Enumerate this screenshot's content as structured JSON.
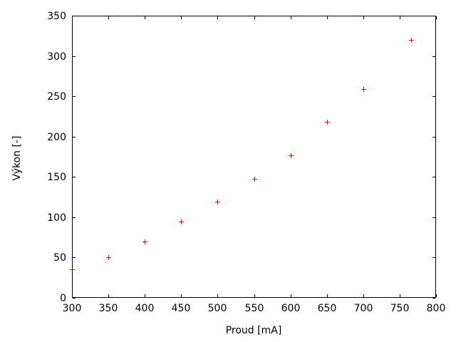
{
  "chart_data": {
    "type": "scatter",
    "title": "",
    "xlabel": "Proud [mA]",
    "ylabel": "Výkon [-]",
    "xlim": [
      300,
      800
    ],
    "ylim": [
      0,
      350
    ],
    "xticks": [
      300,
      350,
      400,
      450,
      500,
      550,
      600,
      650,
      700,
      750,
      800
    ],
    "yticks": [
      0,
      50,
      100,
      150,
      200,
      250,
      300,
      350
    ],
    "grid": false,
    "legend_position": "none",
    "marker": "plus",
    "marker_color": "#ff0000",
    "axis_color": "#000000",
    "background_color": "#ffffff",
    "tick_style": "inward-mirrored",
    "points": [
      {
        "x": 300,
        "y": 35
      },
      {
        "x": 350,
        "y": 50
      },
      {
        "x": 400,
        "y": 70
      },
      {
        "x": 450,
        "y": 95
      },
      {
        "x": 500,
        "y": 119
      },
      {
        "x": 550,
        "y": 148
      },
      {
        "x": 600,
        "y": 177
      },
      {
        "x": 650,
        "y": 218
      },
      {
        "x": 700,
        "y": 259
      },
      {
        "x": 766,
        "y": 320
      }
    ]
  }
}
